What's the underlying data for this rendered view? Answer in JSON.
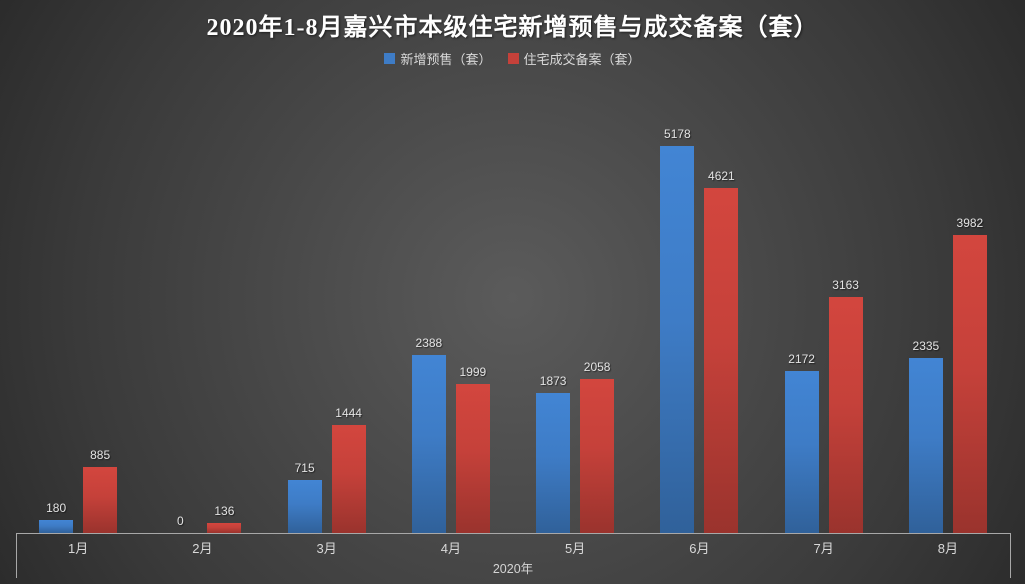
{
  "title": "2020年1-8月嘉兴市本级住宅新增预售与成交备案（套）",
  "legend": [
    {
      "label": "新增预售（套）",
      "color": "#3E7CC6"
    },
    {
      "label": "住宅成交备案（套）",
      "color": "#C5413A"
    }
  ],
  "colors": {
    "background_center": "#5b5b5b",
    "background_edge": "#232323",
    "axis_line": "#a8a8a8",
    "title_text": "#ffffff",
    "label_text": "#e3e3e3",
    "series_blue": "#3E7CC6",
    "series_red": "#C5413A"
  },
  "chart_data": {
    "type": "bar",
    "title": "2020年1-8月嘉兴市本级住宅新增预售与成交备案（套）",
    "categories": [
      "1月",
      "2月",
      "3月",
      "4月",
      "5月",
      "6月",
      "7月",
      "8月"
    ],
    "series": [
      {
        "name": "新增预售（套）",
        "color": "#3E7CC6",
        "values": [
          180,
          0,
          715,
          2388,
          1873,
          5178,
          2172,
          2335
        ]
      },
      {
        "name": "住宅成交备案（套）",
        "color": "#C5413A",
        "values": [
          885,
          136,
          1444,
          1999,
          2058,
          4621,
          3163,
          3982
        ]
      }
    ],
    "xlabel": "2020年",
    "ylabel": "",
    "ylim": [
      0,
      5500
    ],
    "grid": false,
    "legend_position": "top",
    "value_labels": true
  }
}
